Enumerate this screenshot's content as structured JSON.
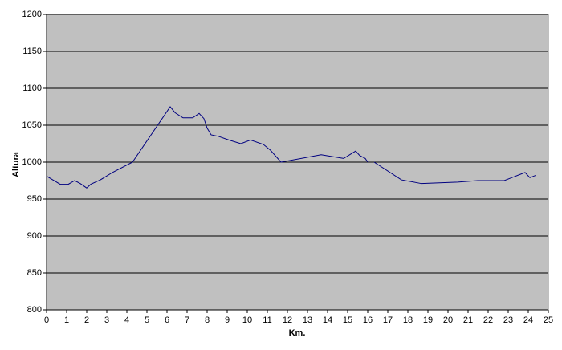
{
  "chart_data": {
    "type": "line",
    "x_label": "Km.",
    "y_label": "Altura",
    "x": [
      0,
      0.68,
      1.08,
      1.4,
      1.68,
      2.0,
      2.2,
      2.68,
      3.28,
      4.28,
      6.16,
      6.4,
      6.8,
      7.28,
      7.6,
      7.84,
      8.0,
      8.2,
      8.56,
      9.08,
      9.68,
      10.16,
      10.8,
      11.16,
      11.68,
      13.68,
      14.8,
      15.4,
      15.6,
      15.88,
      16.0,
      16.16,
      16.32,
      17.68,
      18.68,
      20.48,
      21.48,
      22.8,
      23.84,
      24.08,
      24.36
    ],
    "values": [
      981,
      970,
      970,
      975,
      971,
      965,
      970,
      976,
      986,
      1000,
      1075,
      1067,
      1060,
      1060,
      1066,
      1059,
      1046,
      1037,
      1035,
      1030,
      1025,
      1030,
      1024,
      1016,
      1000,
      1010,
      1005,
      1015,
      1009,
      1005,
      1000,
      null,
      1000,
      976,
      971,
      973,
      975,
      975,
      986,
      979,
      982
    ],
    "color": "#000080",
    "xlim": [
      0,
      25
    ],
    "xticks": [
      0,
      1,
      2,
      3,
      4,
      5,
      6,
      7,
      8,
      9,
      10,
      11,
      12,
      13,
      14,
      15,
      16,
      17,
      18,
      19,
      20,
      21,
      22,
      23,
      24,
      25
    ],
    "ylim": [
      800,
      1200
    ],
    "yticks": [
      800,
      850,
      900,
      950,
      1000,
      1050,
      1100,
      1150,
      1200
    ],
    "grid": true
  }
}
